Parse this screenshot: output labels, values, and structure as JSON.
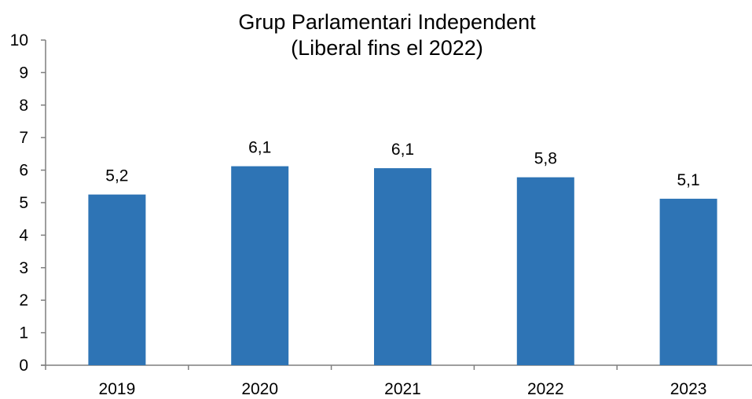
{
  "chart_data": {
    "type": "bar",
    "title_lines": [
      "Grup Parlamentari Independent",
      "(Liberal fins el 2022)"
    ],
    "categories": [
      "2019",
      "2020",
      "2021",
      "2022",
      "2023"
    ],
    "values": [
      5.25,
      6.12,
      6.06,
      5.78,
      5.12
    ],
    "data_labels": [
      "5,2",
      "6,1",
      "6,1",
      "5,8",
      "5,1"
    ],
    "ylim": [
      0,
      10
    ],
    "yticks": [
      "0",
      "1",
      "2",
      "3",
      "4",
      "5",
      "6",
      "7",
      "8",
      "9",
      "10"
    ],
    "grid": false,
    "legend": "none",
    "bar_color": "#2E74B5",
    "axis_color": "#7f7f7f"
  }
}
